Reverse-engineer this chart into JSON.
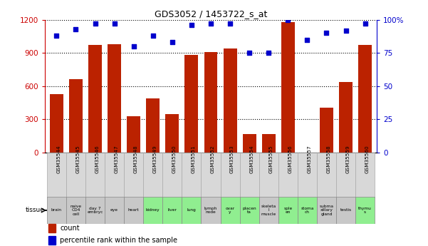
{
  "title": "GDS3052 / 1453722_s_at",
  "samples": [
    "GSM35544",
    "GSM35545",
    "GSM35546",
    "GSM35547",
    "GSM35548",
    "GSM35549",
    "GSM35550",
    "GSM35551",
    "GSM35552",
    "GSM35553",
    "GSM35554",
    "GSM35555",
    "GSM35556",
    "GSM35557",
    "GSM35558",
    "GSM35559",
    "GSM35560"
  ],
  "counts": [
    530,
    660,
    970,
    980,
    330,
    490,
    345,
    880,
    910,
    940,
    165,
    170,
    1180,
    0,
    405,
    640,
    970
  ],
  "percentiles": [
    88,
    93,
    97,
    97,
    80,
    88,
    83,
    96,
    97,
    97,
    75,
    75,
    100,
    85,
    90,
    92,
    97
  ],
  "tissues": [
    "brain",
    "naive\nCD4\ncell",
    "day 7\nembryc",
    "eye",
    "heart",
    "kidney",
    "liver",
    "lung",
    "lymph\nnode",
    "ovar\ny",
    "placen\nta",
    "skeleta\nl\nmuscle",
    "sple\nen",
    "stoma\nch",
    "subma\nxillary\ngland",
    "testis",
    "thymu\ns"
  ],
  "tissue_colors": [
    "#c8c8c8",
    "#c8c8c8",
    "#c8c8c8",
    "#c8c8c8",
    "#c8c8c8",
    "#90ee90",
    "#90ee90",
    "#90ee90",
    "#c8c8c8",
    "#90ee90",
    "#90ee90",
    "#c8c8c8",
    "#90ee90",
    "#90ee90",
    "#c8c8c8",
    "#c8c8c8",
    "#90ee90"
  ],
  "bar_color": "#bb2200",
  "dot_color": "#0000cc",
  "ylim_left": [
    0,
    1200
  ],
  "ylim_right": [
    0,
    100
  ],
  "yticks_left": [
    0,
    300,
    600,
    900,
    1200
  ],
  "yticks_right": [
    0,
    25,
    50,
    75,
    100
  ],
  "left_color": "#cc0000",
  "right_color": "#0000cc"
}
